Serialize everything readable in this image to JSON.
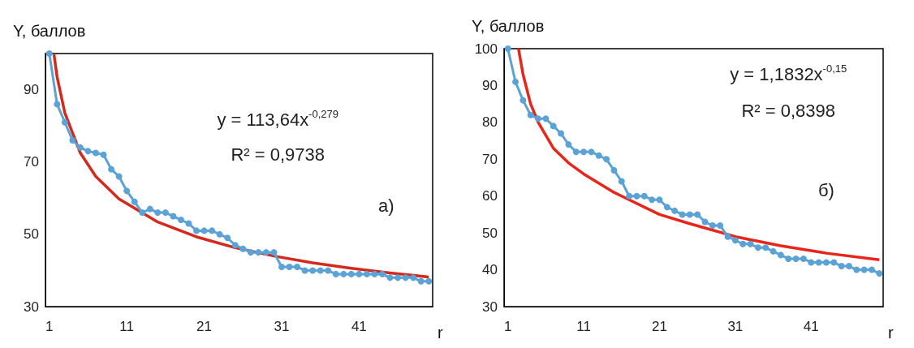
{
  "chart_data": [
    {
      "type": "line",
      "ylabel": "Y, баллов",
      "xlabel": "r",
      "xlim": [
        0.5,
        50.5
      ],
      "xticks": [
        1,
        11,
        21,
        31,
        41
      ],
      "ylim": [
        30,
        100
      ],
      "yticks": [
        30,
        50,
        70,
        90
      ],
      "grid": false,
      "annotations": [
        "y = 113,64x$^{-0,279}$",
        "R² = 0,9738",
        "а)"
      ],
      "series": [
        {
          "marker": "circle",
          "color": "#5ba3d6",
          "x": [
            1,
            2,
            3,
            4,
            5,
            6,
            7,
            8,
            9,
            10,
            11,
            12,
            13,
            14,
            15,
            16,
            17,
            18,
            19,
            20,
            21,
            22,
            23,
            24,
            25,
            26,
            27,
            28,
            29,
            30,
            31,
            32,
            33,
            34,
            35,
            36,
            37,
            38,
            39,
            40,
            41,
            42,
            43,
            44,
            45,
            46,
            47,
            48,
            49,
            50
          ],
          "values": [
            100,
            86,
            81,
            76,
            74,
            73,
            72.5,
            72,
            68,
            66,
            62,
            59,
            56,
            57,
            56,
            56,
            55,
            54,
            53,
            51,
            51,
            51,
            50,
            49,
            47,
            46,
            45,
            45,
            45,
            45,
            41,
            41,
            41,
            40,
            40,
            40,
            40,
            39,
            39,
            39,
            39,
            39,
            39,
            39,
            38,
            38,
            38,
            38,
            37,
            37
          ]
        },
        {
          "marker": "none",
          "color": "#d42a1e",
          "x": [
            1.6,
            2,
            3,
            5,
            7,
            10,
            15,
            20,
            25,
            30,
            35,
            40,
            45,
            50
          ],
          "values": [
            99.7,
            93.6,
            83.6,
            72.5,
            66,
            59.8,
            53.4,
            49.3,
            46.3,
            44,
            42.1,
            40.6,
            39.3,
            38.2
          ]
        }
      ]
    },
    {
      "type": "line",
      "ylabel": "Y, баллов",
      "xlabel": "r",
      "xlim": [
        0.5,
        50.5
      ],
      "xticks": [
        1,
        11,
        21,
        31,
        41
      ],
      "ylim": [
        30,
        100
      ],
      "yticks": [
        30,
        40,
        50,
        60,
        70,
        80,
        90,
        100
      ],
      "grid": false,
      "annotations": [
        "y = 1,1832x$^{-0,15}$",
        "R² = 0,8398",
        "б)"
      ],
      "series": [
        {
          "marker": "circle",
          "color": "#5ba3d6",
          "x": [
            1,
            2,
            3,
            4,
            5,
            6,
            7,
            8,
            9,
            10,
            11,
            12,
            13,
            14,
            15,
            16,
            17,
            18,
            19,
            20,
            21,
            22,
            23,
            24,
            25,
            26,
            27,
            28,
            29,
            30,
            31,
            32,
            33,
            34,
            35,
            36,
            37,
            38,
            39,
            40,
            41,
            42,
            43,
            44,
            45,
            46,
            47,
            48,
            49,
            50
          ],
          "values": [
            100,
            91,
            86,
            82,
            81,
            81,
            79,
            77,
            74,
            72,
            72,
            72,
            71,
            70,
            67,
            64,
            60,
            60,
            60,
            59,
            59,
            57,
            56,
            55,
            55,
            55,
            53,
            52,
            52,
            49,
            48,
            47,
            47,
            46,
            46,
            45,
            44,
            43,
            43,
            43,
            42,
            42,
            42,
            42,
            41,
            41,
            40,
            40,
            40,
            39
          ]
        },
        {
          "marker": "none",
          "color": "#e8251b",
          "x": [
            2.4,
            3,
            4,
            5,
            7,
            9,
            11,
            15,
            21,
            25,
            31,
            37,
            43,
            50
          ],
          "values": [
            100,
            93,
            85,
            80,
            73,
            69,
            66,
            61,
            55,
            52.5,
            49,
            46.5,
            44.5,
            42.7
          ]
        }
      ]
    }
  ]
}
